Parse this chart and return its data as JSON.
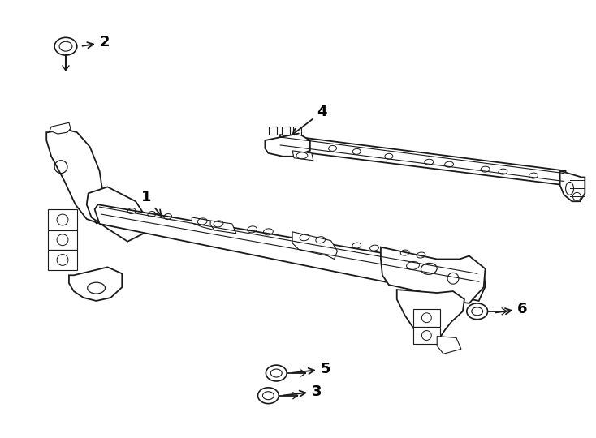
{
  "background_color": "#ffffff",
  "line_color": "#1a1a1a",
  "label_color": "#000000",
  "fig_width": 7.34,
  "fig_height": 5.4,
  "dpi": 100
}
